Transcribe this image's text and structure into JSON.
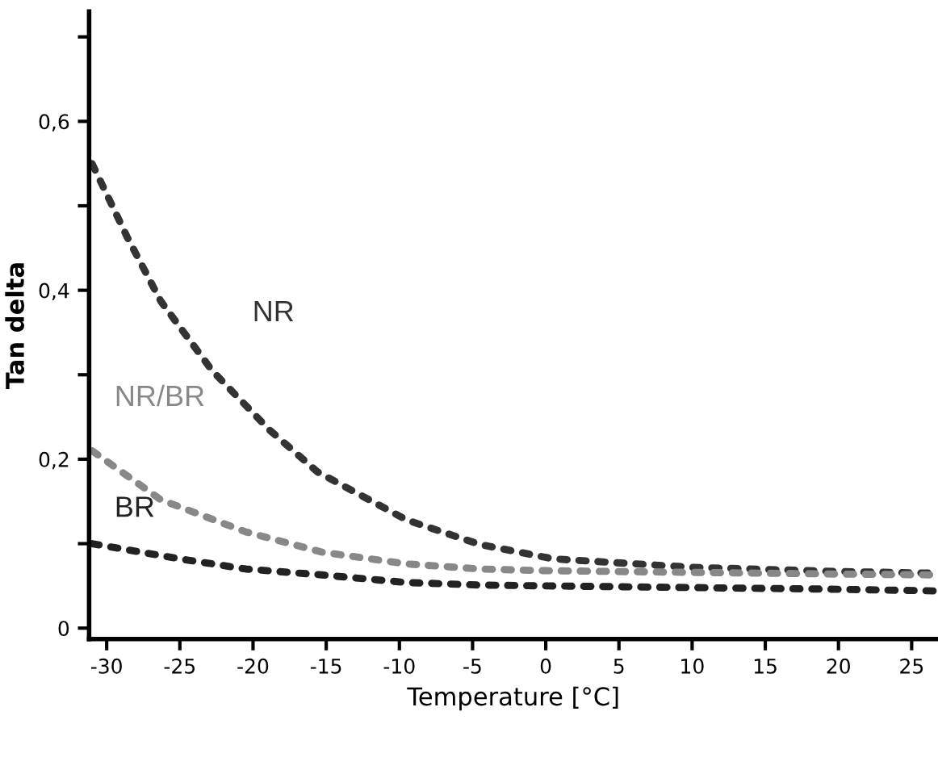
{
  "chart_data": {
    "type": "line",
    "xlabel": "Temperature [°C]",
    "ylabel": "Tan delta",
    "xlim": [
      -31.2,
      26.8
    ],
    "ylim": [
      -0.013,
      0.73
    ],
    "xticks": [
      -30,
      -25,
      -20,
      -15,
      -10,
      -5,
      0,
      5,
      10,
      15,
      20,
      25
    ],
    "yticks": [
      {
        "value": 0,
        "label": "0"
      },
      {
        "value": 0.1,
        "label": null
      },
      {
        "value": 0.2,
        "label": "0,2"
      },
      {
        "value": 0.3,
        "label": null
      },
      {
        "value": 0.4,
        "label": "0,4"
      },
      {
        "value": 0.5,
        "label": null
      },
      {
        "value": 0.6,
        "label": "0,6"
      },
      {
        "value": 0.7,
        "label": null
      }
    ],
    "grid": false,
    "legend": false,
    "line_style": "dotted",
    "series": [
      {
        "name": "NR",
        "color": "#333333",
        "x": [
          -31,
          -28.6,
          -26.3,
          -22.8,
          -18.9,
          -15.6,
          -9.5,
          -4.5,
          0.5,
          10,
          20,
          26.8
        ],
        "values": [
          0.55,
          0.463,
          0.387,
          0.305,
          0.235,
          0.185,
          0.128,
          0.099,
          0.082,
          0.072,
          0.067,
          0.065
        ]
      },
      {
        "name": "NR/BR",
        "color": "#888888",
        "x": [
          -31,
          -26.3,
          -20.5,
          -15.3,
          -9.5,
          -4.5,
          0,
          10,
          20,
          26.8
        ],
        "values": [
          0.21,
          0.152,
          0.114,
          0.09,
          0.076,
          0.07,
          0.068,
          0.066,
          0.064,
          0.063
        ]
      },
      {
        "name": "BR",
        "color": "#222222",
        "x": [
          -31,
          -25,
          -20.5,
          -15.3,
          -9.5,
          -4.5,
          0,
          10,
          20,
          26.8
        ],
        "values": [
          0.1,
          0.082,
          0.07,
          0.063,
          0.054,
          0.051,
          0.05,
          0.048,
          0.046,
          0.044
        ]
      }
    ]
  }
}
